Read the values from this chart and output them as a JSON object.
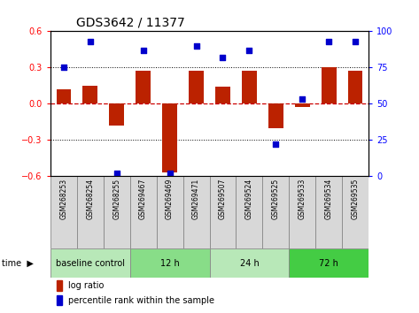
{
  "title": "GDS3642 / 11377",
  "samples": [
    "GSM268253",
    "GSM268254",
    "GSM268255",
    "GSM269467",
    "GSM269469",
    "GSM269471",
    "GSM269507",
    "GSM269524",
    "GSM269525",
    "GSM269533",
    "GSM269534",
    "GSM269535"
  ],
  "log_ratio": [
    0.12,
    0.15,
    -0.18,
    0.27,
    -0.57,
    0.27,
    0.14,
    0.27,
    -0.2,
    -0.03,
    0.3,
    0.27
  ],
  "percentile_rank": [
    75,
    93,
    2,
    87,
    2,
    90,
    82,
    87,
    22,
    53,
    93,
    93
  ],
  "ylim_left": [
    -0.6,
    0.6
  ],
  "ylim_right": [
    0,
    100
  ],
  "yticks_left": [
    -0.6,
    -0.3,
    0.0,
    0.3,
    0.6
  ],
  "yticks_right": [
    0,
    25,
    50,
    75,
    100
  ],
  "bar_color": "#BB2200",
  "dot_color": "#0000CC",
  "groups": [
    {
      "label": "baseline control",
      "start": 0,
      "end": 3,
      "color": "#b8e8b8"
    },
    {
      "label": "12 h",
      "start": 3,
      "end": 6,
      "color": "#88dd88"
    },
    {
      "label": "24 h",
      "start": 6,
      "end": 9,
      "color": "#b8e8b8"
    },
    {
      "label": "72 h",
      "start": 9,
      "end": 12,
      "color": "#44cc44"
    }
  ],
  "sample_bg": "#d8d8d8",
  "sample_border": "#888888",
  "legend_bar_label": "log ratio",
  "legend_dot_label": "percentile rank within the sample",
  "time_label": "time",
  "hline_color": "#CC0000",
  "dotline_color": "black",
  "title_fontsize": 10,
  "tick_fontsize": 7,
  "sample_fontsize": 5.5,
  "group_fontsize": 7,
  "legend_fontsize": 7
}
